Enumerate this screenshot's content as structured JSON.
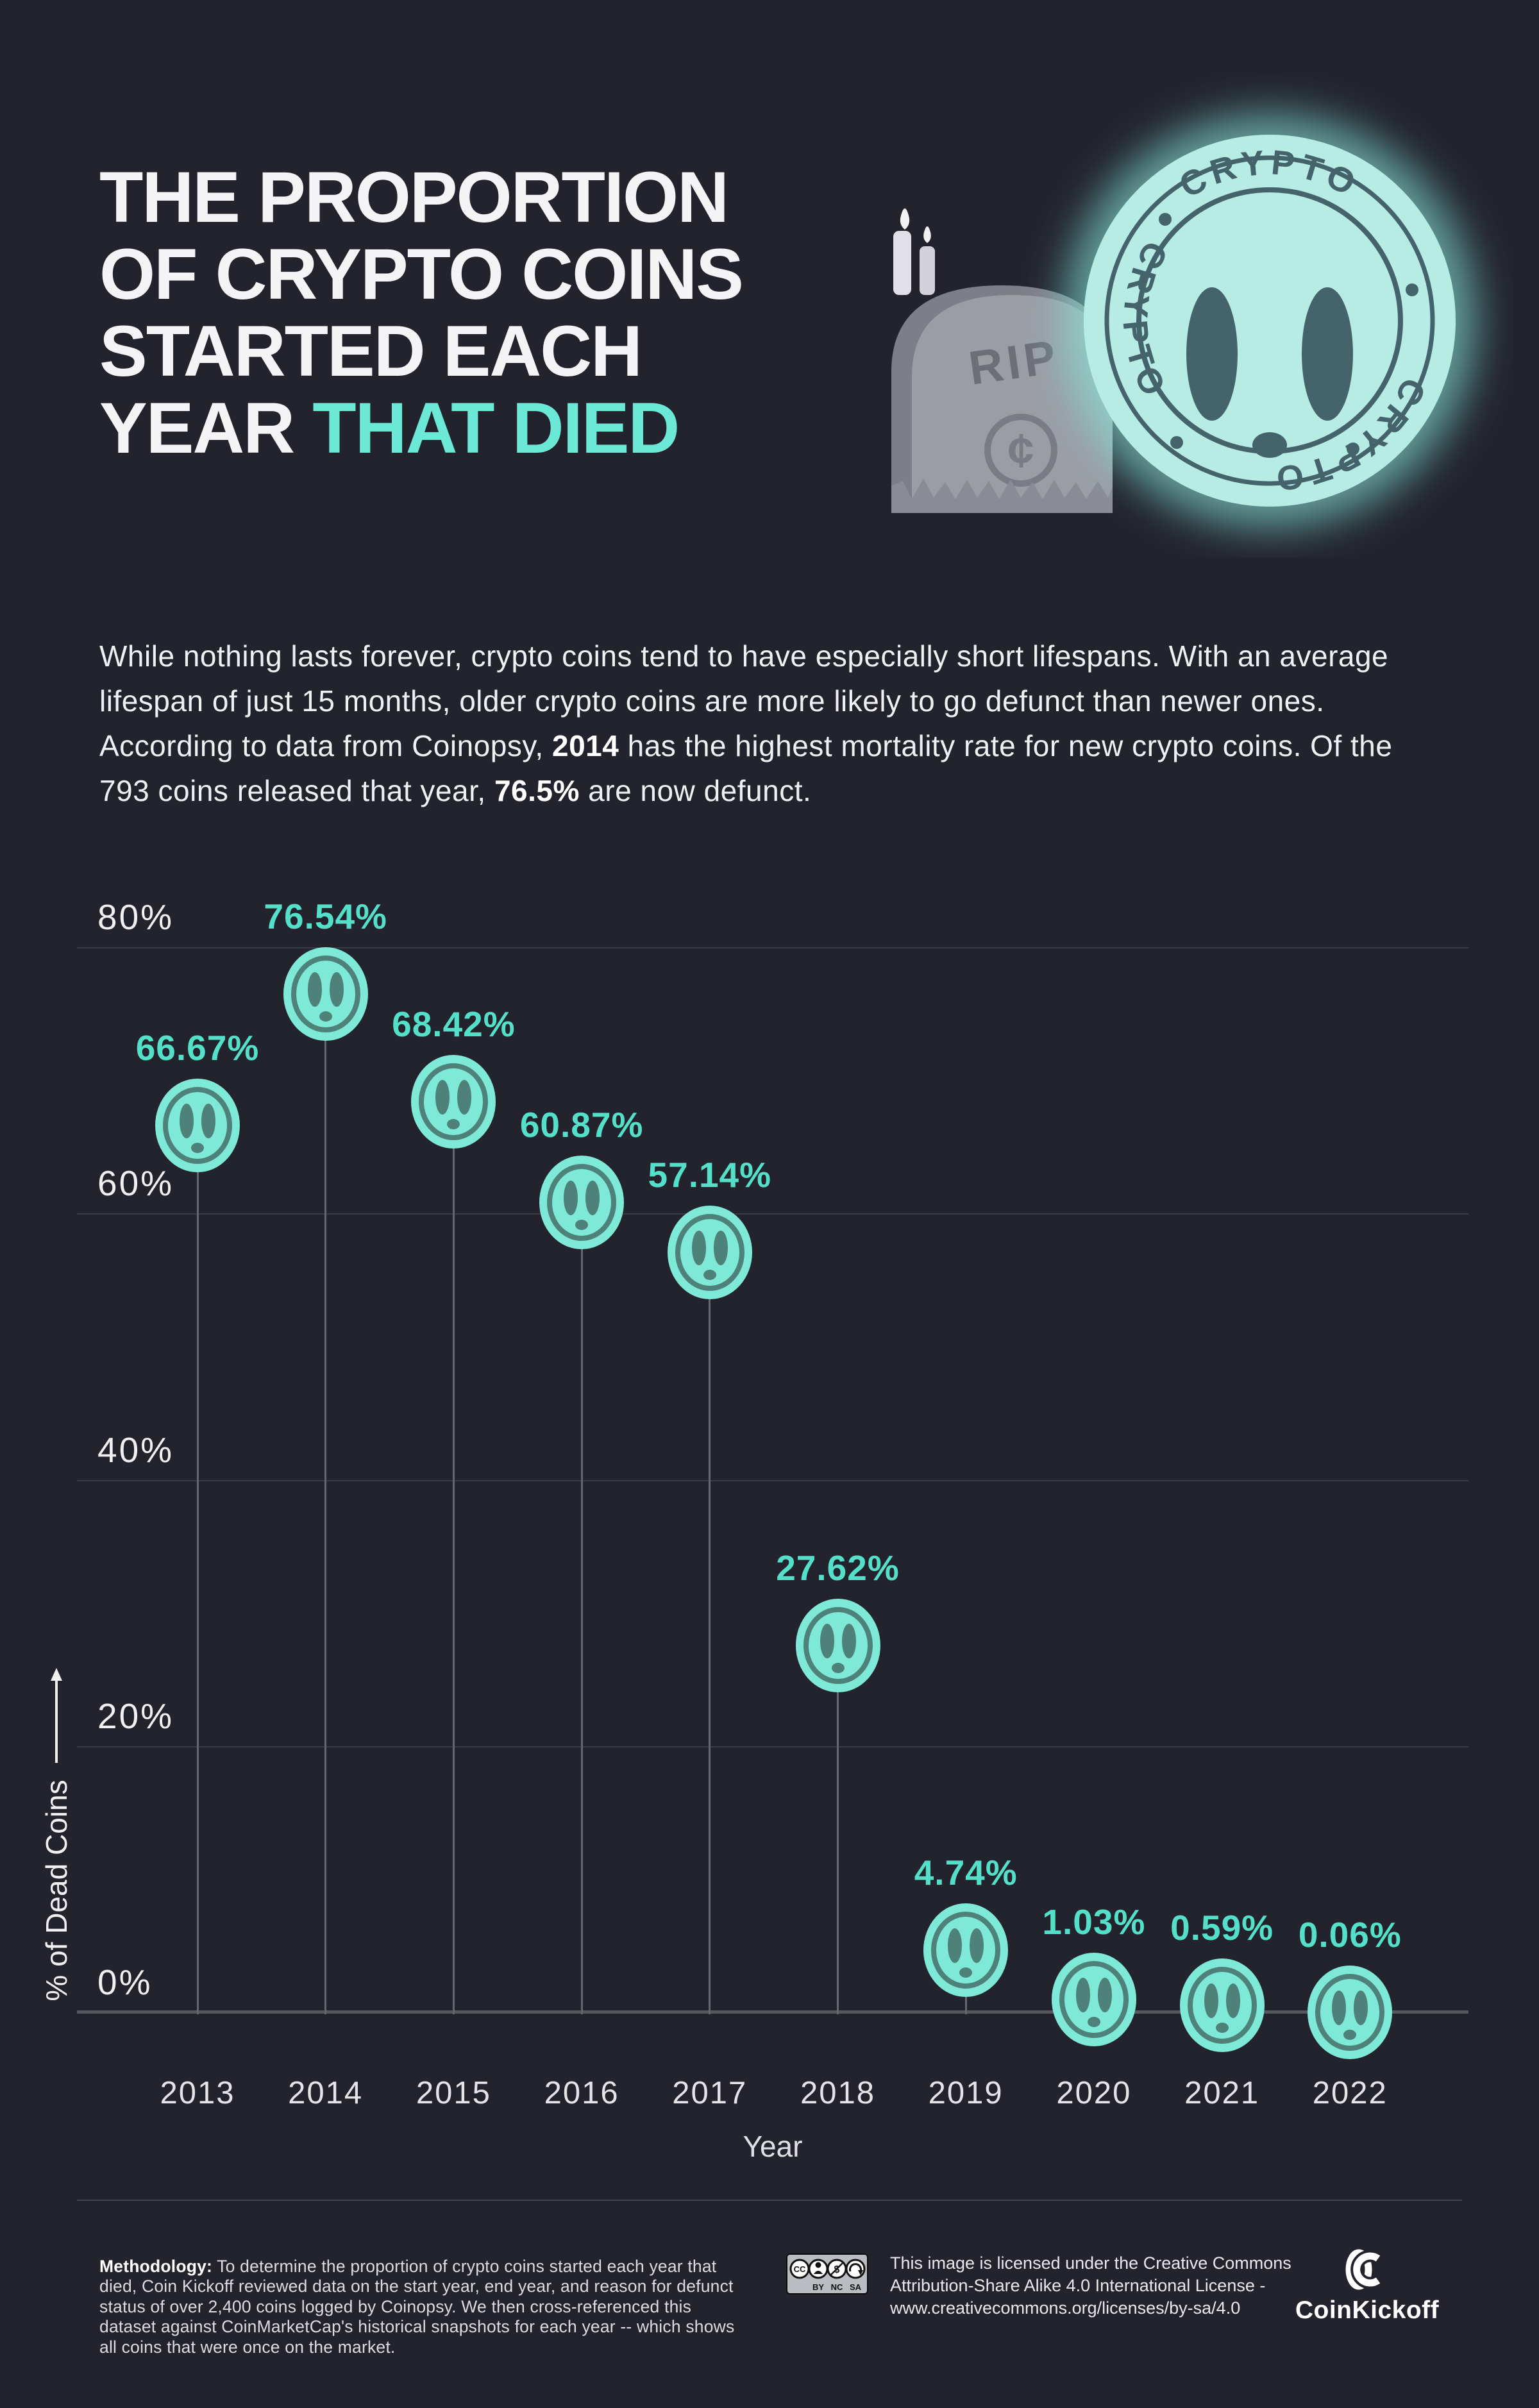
{
  "title": {
    "lines": [
      "THE PROPORTION",
      "OF CRYPTO COINS",
      "STARTED EACH"
    ],
    "last_line_prefix": "YEAR ",
    "last_line_accent": "THAT DIED"
  },
  "hero": {
    "coin_stamp_text_top": "CRYPTO",
    "coin_stamp_text_left": "CRYPTO",
    "coin_stamp_text_bottom": "CRYPTO",
    "tombstone_label": "RIP",
    "tombstone_symbol": "¢"
  },
  "intro": {
    "p1": "While nothing lasts forever, crypto coins tend to have especially short lifespans. With an average lifespan of just 15 months, older crypto coins are more likely to go defunct than newer ones. According to data from Coinopsy, ",
    "b1": "2014",
    "p2": " has the highest mortality rate for new crypto coins. Of the 793 coins released that year, ",
    "b2": "76.5%",
    "p3": " are now defunct."
  },
  "chart_data": {
    "type": "scatter",
    "title": "The proportion of crypto coins started each year that died",
    "x": [
      "2013",
      "2014",
      "2015",
      "2016",
      "2017",
      "2018",
      "2019",
      "2020",
      "2021",
      "2022"
    ],
    "values": [
      66.67,
      76.54,
      68.42,
      60.87,
      57.14,
      27.62,
      4.74,
      1.03,
      0.59,
      0.06
    ],
    "labels": [
      "66.67%",
      "76.54%",
      "68.42%",
      "60.87%",
      "57.14%",
      "27.62%",
      "4.74%",
      "1.03%",
      "0.59%",
      "0.06%"
    ],
    "xlabel": "Year",
    "ylabel": "% of Dead Coins",
    "yticks": [
      "0%",
      "20%",
      "40%",
      "60%",
      "80%"
    ],
    "ytick_values": [
      0,
      20,
      40,
      60,
      80
    ],
    "ylim": [
      0,
      80
    ],
    "grid": "horizontal",
    "legend": "none",
    "marker": "ghost-coin-lollipop"
  },
  "footer": {
    "methodology_label": "Methodology:",
    "methodology_text": " To determine the proportion of crypto coins started each year that died, Coin Kickoff reviewed data on the start year, end year, and reason for defunct status of over 2,400 coins logged by Coinopsy. We then cross-referenced this dataset against CoinMarketCap's historical snapshots for each year -- which shows all coins that were once on the market.",
    "license": {
      "cc_label": "CC",
      "badge_labels": [
        "BY",
        "NC",
        "SA"
      ],
      "nc_symbol": "$",
      "text": "This image is licensed under the Creative Commons Attribution-Share Alike 4.0 International License - www.creativecommons.org/licenses/by-sa/4.0"
    },
    "brand": "CoinKickoff"
  },
  "colors": {
    "background": "#23232e",
    "accent_teal": "#54e0c8",
    "title_accent": "#6ce9d6",
    "coin_fill": "#7fe9d8",
    "coin_detail": "#4e8179",
    "hero_coin_fill": "#b7ece4",
    "hero_coin_detail": "#44636a",
    "grid_line": "#3a3a46",
    "axis_line": "#57575f",
    "stem": "#66666f",
    "text_white": "#f4f4f6",
    "tombstone_grey": "#9b9da5"
  }
}
